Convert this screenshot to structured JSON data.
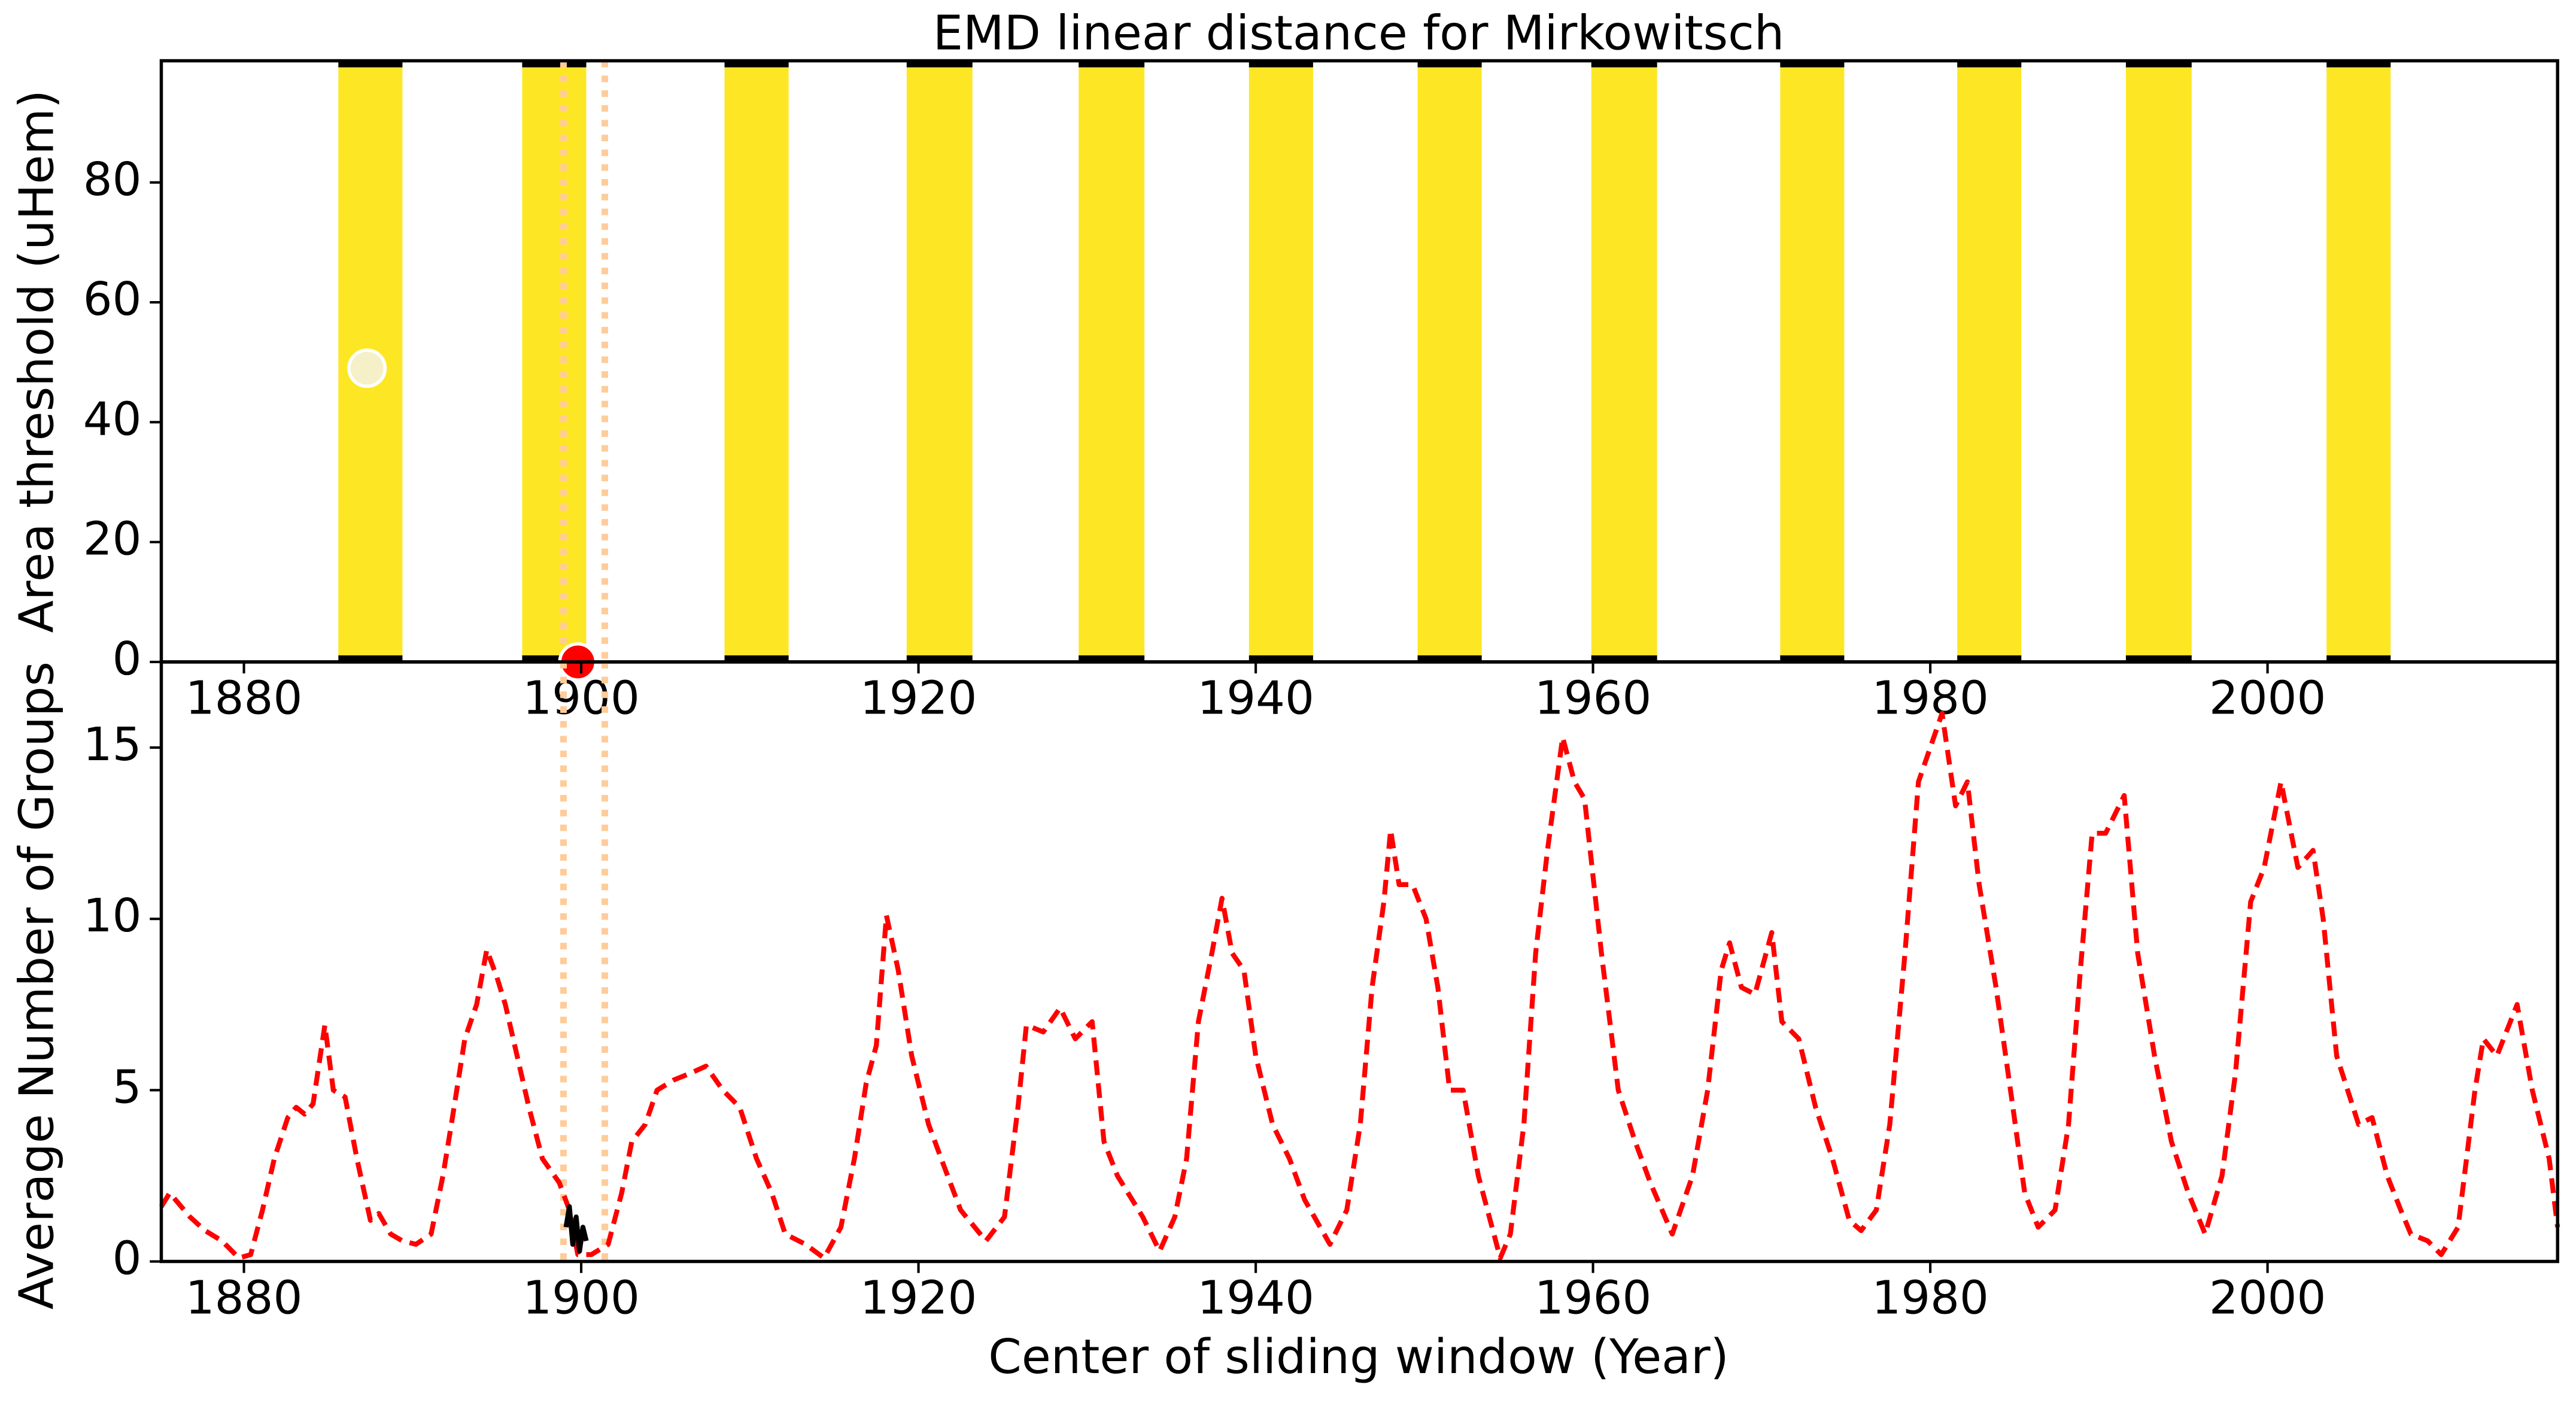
{
  "chart_data": [
    {
      "type": "band",
      "title": "EMD linear distance for Mirkowitsch",
      "ylabel": "Area threshold (uHem)",
      "xlim": [
        1875.1,
        2017.2
      ],
      "ylim": [
        0,
        100.3
      ],
      "xticks": [
        1880,
        1900,
        1920,
        1940,
        1960,
        1980,
        2000
      ],
      "yticks": [
        0,
        20,
        40,
        60,
        80
      ],
      "color": "#fde725",
      "bands": [
        [
          1885.6,
          1889.4
        ],
        [
          1896.5,
          1900.3
        ],
        [
          1908.5,
          1912.3
        ],
        [
          1919.3,
          1923.2
        ],
        [
          1929.5,
          1933.4
        ],
        [
          1939.6,
          1943.4
        ],
        [
          1949.6,
          1953.4
        ],
        [
          1959.9,
          1963.8
        ],
        [
          1971.1,
          1974.9
        ],
        [
          1981.6,
          1985.4
        ],
        [
          1991.6,
          1995.5
        ],
        [
          2003.5,
          2007.3
        ]
      ],
      "points": [
        {
          "x": 1887.3,
          "y": 49,
          "color": "#f5f0c8"
        },
        {
          "x": 1899.8,
          "y": 0,
          "color": "#ff0000"
        }
      ],
      "vlines": [
        1898.95,
        1901.4
      ],
      "vline_color": "#ffcc99"
    },
    {
      "type": "line",
      "ylabel": "Average Number of Groups",
      "xlabel": "Center of sliding window (Year)",
      "xlim": [
        1875.1,
        2017.2
      ],
      "ylim": [
        0,
        17.5
      ],
      "xticks": [
        1880,
        1900,
        1920,
        1940,
        1960,
        1980,
        2000
      ],
      "yticks": [
        0,
        5,
        10,
        15
      ],
      "vlines": [
        1898.95,
        1901.4
      ],
      "vline_color": "#ffcc99",
      "series": [
        {
          "color": "#ff0000",
          "dashed": true,
          "x": [
            1875.1,
            1875.6,
            1876.8,
            1877.7,
            1878.7,
            1879.7,
            1880.4,
            1881.1,
            1881.8,
            1882.6,
            1883.1,
            1883.6,
            1884.1,
            1884.8,
            1885.3,
            1886.0,
            1886.7,
            1887.5,
            1888.0,
            1888.7,
            1889.4,
            1890.2,
            1891.1,
            1891.8,
            1892.3,
            1893.1,
            1893.8,
            1894.4,
            1895.0,
            1895.5,
            1896.2,
            1896.9,
            1897.7,
            1898.7,
            1899.3,
            1899.8,
            1900.6,
            1901.6,
            1902.4,
            1903.0,
            1903.8,
            1904.5,
            1905.5,
            1906.5,
            1907.4,
            1908.4,
            1909.4,
            1910.4,
            1911.3,
            1912.1,
            1913.3,
            1914.4,
            1915.4,
            1916.2,
            1916.9,
            1917.5,
            1918.1,
            1918.8,
            1919.6,
            1920.6,
            1921.5,
            1922.5,
            1924.0,
            1925.1,
            1925.9,
            1926.4,
            1927.4,
            1928.4,
            1929.3,
            1930.3,
            1931.0,
            1931.8,
            1933.3,
            1934.3,
            1935.2,
            1935.9,
            1936.6,
            1937.4,
            1938.0,
            1938.6,
            1939.3,
            1940.0,
            1941.0,
            1942.0,
            1942.9,
            1944.4,
            1945.4,
            1946.2,
            1946.9,
            1947.6,
            1948.0,
            1948.5,
            1949.3,
            1950.1,
            1950.8,
            1951.5,
            1952.3,
            1953.2,
            1954.5,
            1955.1,
            1955.9,
            1956.6,
            1957.3,
            1958.2,
            1958.9,
            1959.5,
            1960.5,
            1961.5,
            1962.5,
            1963.4,
            1964.7,
            1965.9,
            1966.8,
            1967.6,
            1968.1,
            1968.8,
            1969.6,
            1970.6,
            1971.2,
            1972.2,
            1973.2,
            1974.2,
            1975.2,
            1975.9,
            1976.8,
            1977.6,
            1978.5,
            1979.3,
            1980.0,
            1980.7,
            1981.5,
            1982.2,
            1982.9,
            1983.9,
            1984.9,
            1985.6,
            1986.4,
            1987.4,
            1988.2,
            1988.9,
            1989.6,
            1990.4,
            1991.5,
            1992.3,
            1993.3,
            1994.3,
            1995.3,
            1996.3,
            1997.3,
            1998.1,
            1999.0,
            1999.8,
            2000.8,
            2001.8,
            2002.7,
            2003.3,
            2004.1,
            2005.4,
            2006.2,
            2007.1,
            2007.9,
            2008.5,
            2009.5,
            2010.3,
            2011.3,
            2012.3,
            2012.8,
            2013.6,
            2014.8,
            2015.7,
            2016.7,
            2017.2
          ],
          "values": [
            1.6,
            2.0,
            1.3,
            0.9,
            0.6,
            0.1,
            0.2,
            1.5,
            3.0,
            4.2,
            4.5,
            4.3,
            4.6,
            6.9,
            5.0,
            4.8,
            3.0,
            1.2,
            1.4,
            0.8,
            0.6,
            0.5,
            0.8,
            2.5,
            4.0,
            6.5,
            7.5,
            9.1,
            8.3,
            7.5,
            6.0,
            4.5,
            3.0,
            2.3,
            1.5,
            0.2,
            0.2,
            0.5,
            2.0,
            3.5,
            4.0,
            5.0,
            5.3,
            5.5,
            5.7,
            5.0,
            4.5,
            3.0,
            2.0,
            0.8,
            0.5,
            0.1,
            1.0,
            3.0,
            5.2,
            6.3,
            10.1,
            8.5,
            6.0,
            4.0,
            2.8,
            1.5,
            0.6,
            1.3,
            4.5,
            6.9,
            6.7,
            7.4,
            6.5,
            7.0,
            3.5,
            2.5,
            1.3,
            0.3,
            1.3,
            3.0,
            7.0,
            9.0,
            10.6,
            9.0,
            8.5,
            6.0,
            4.0,
            3.0,
            1.8,
            0.5,
            1.5,
            4.0,
            8.0,
            10.5,
            12.6,
            11.0,
            11.0,
            10.0,
            8.0,
            5.0,
            5.0,
            2.5,
            0.1,
            0.8,
            4.0,
            9.0,
            12.0,
            15.3,
            14.0,
            13.5,
            9.0,
            5.0,
            3.5,
            2.3,
            0.8,
            2.5,
            5.0,
            8.5,
            9.3,
            8.0,
            7.8,
            9.6,
            7.0,
            6.5,
            4.5,
            3.0,
            1.2,
            0.9,
            1.5,
            4.0,
            9.0,
            14.0,
            15.0,
            16.0,
            13.3,
            14.0,
            11.0,
            8.0,
            4.5,
            2.0,
            1.0,
            1.5,
            4.0,
            8.5,
            12.5,
            12.5,
            13.6,
            9.0,
            6.0,
            3.5,
            2.0,
            0.8,
            2.5,
            5.5,
            10.5,
            11.5,
            14.0,
            11.5,
            12.0,
            10.0,
            6.0,
            4.0,
            4.2,
            2.5,
            1.5,
            0.8,
            0.6,
            0.2,
            1.0,
            5.0,
            6.5,
            6.0,
            7.5,
            5.0,
            3.0,
            1.0
          ]
        },
        {
          "color": "#000000",
          "dashed": false,
          "x": [
            1899.1,
            1899.3,
            1899.5,
            1899.7,
            1899.9,
            1900.1,
            1900.3
          ],
          "values": [
            1.0,
            1.6,
            0.5,
            1.3,
            0.3,
            1.0,
            0.6
          ]
        }
      ]
    }
  ]
}
